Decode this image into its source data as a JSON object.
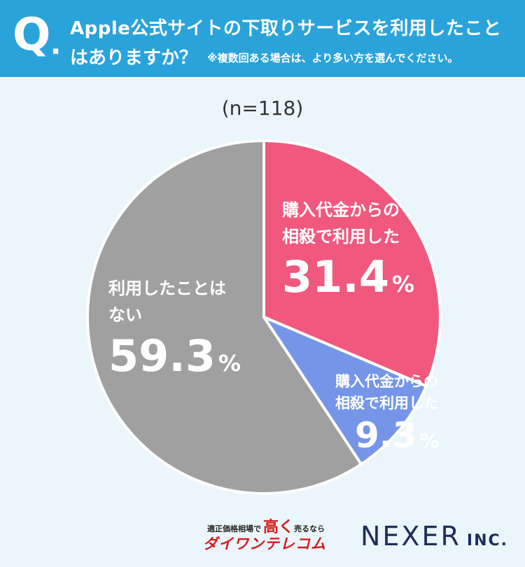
{
  "header": {
    "q_mark": "Q",
    "q_dot": ".",
    "line1": "Apple公式サイトの下取りサービスを利用したこと",
    "line2": "はありますか？",
    "note": "※複数回ある場合は、より多い方を選んでください。"
  },
  "sample_size": "(n=118)",
  "chart_data": {
    "type": "pie",
    "title": "",
    "start_angle_deg": 0,
    "direction": "clockwise",
    "slices": [
      {
        "label_lines": [
          "購入代金からの",
          "相殺で利用した"
        ],
        "value": 31.4,
        "value_text": "31.4",
        "unit": "%",
        "color": "#f0587e"
      },
      {
        "label_lines": [
          "購入代金からの",
          "相殺で利用した"
        ],
        "value": 9.3,
        "value_text": "9.3",
        "unit": "%",
        "color": "#7596e8"
      },
      {
        "label_lines": [
          "利用したことは",
          "ない"
        ],
        "value": 59.3,
        "value_text": "59.3",
        "unit": "%",
        "color": "#a0a0a0"
      }
    ]
  },
  "footer": {
    "daikoku_small_left": "適正価格相場で",
    "daikoku_big": "高く",
    "daikoku_small_right": "売るなら",
    "daikoku_brand": "ダイワンテレコム",
    "nexer_main": "NEXER",
    "nexer_inc": "INC."
  }
}
